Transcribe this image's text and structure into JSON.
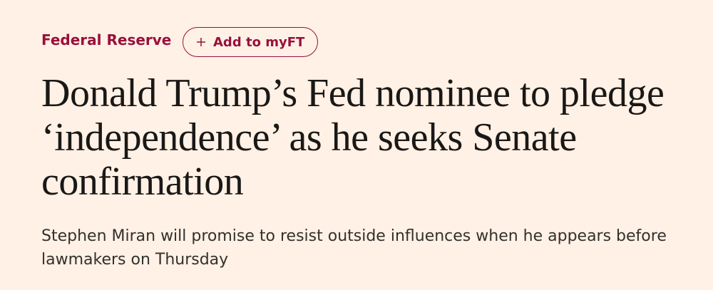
{
  "header": {
    "topic": "Federal Reserve",
    "follow_button": "Add to myFT"
  },
  "headline": "Donald Trump’s Fed nominee to pledge ‘independence’ as he seeks Senate confirmation",
  "standfirst": "Stephen Miran will promise to resist outside influences when he appears before lawmakers on Thursday"
}
